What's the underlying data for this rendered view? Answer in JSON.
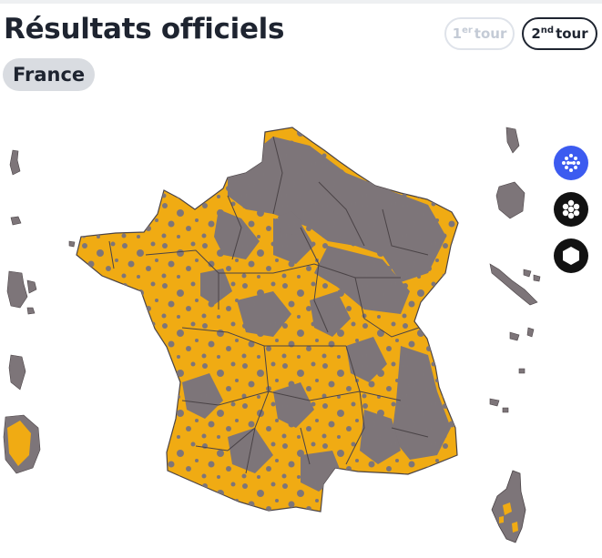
{
  "header": {
    "title": "Résultats officiels",
    "scope_label": "France",
    "tours": [
      {
        "number": "1",
        "suffix": "er",
        "label": "tour",
        "active": false
      },
      {
        "number": "2",
        "suffix": "nd",
        "label": "tour",
        "active": true
      }
    ]
  },
  "map": {
    "colors": {
      "winner_majority": "#f0ab13",
      "winner_other": "#7d7579",
      "border": "#4a4346"
    }
  },
  "view_toggles": [
    {
      "icon": "commune-hex-grid-icon",
      "active": true
    },
    {
      "icon": "department-hex-cluster-icon",
      "active": false
    },
    {
      "icon": "region-hexagon-icon",
      "active": false
    }
  ]
}
